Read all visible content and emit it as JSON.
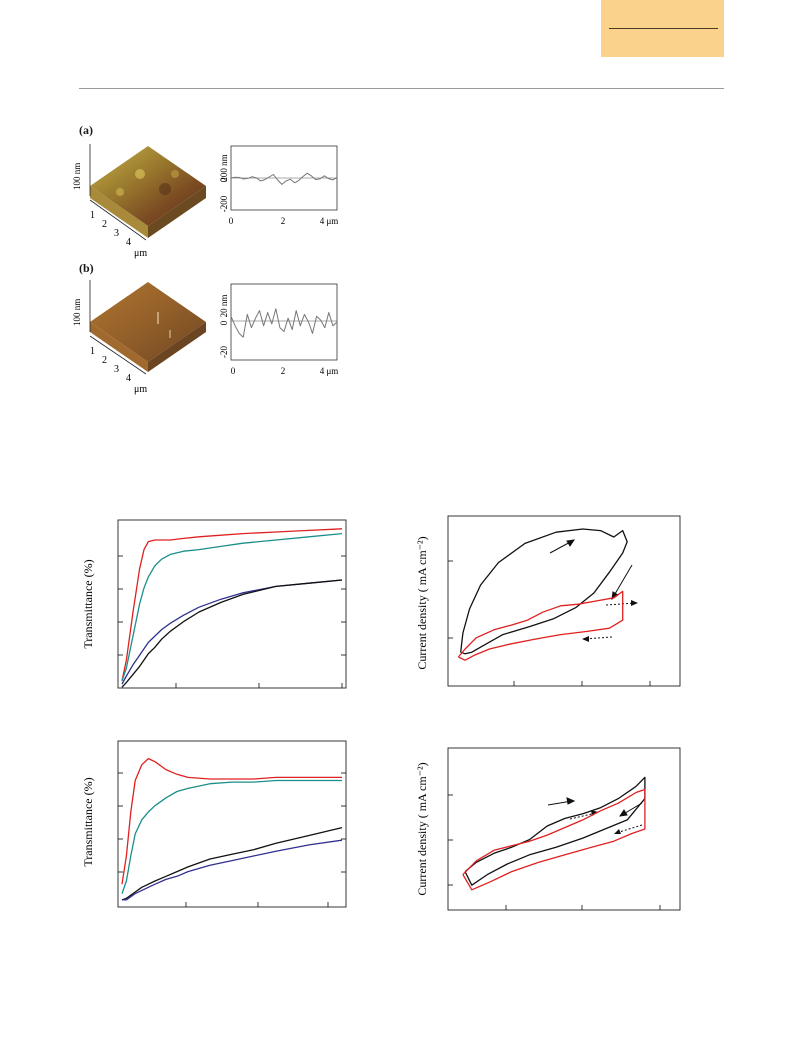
{
  "header": {
    "tab_color": "#fbd28c"
  },
  "afm": {
    "panels": [
      {
        "label": "(a)",
        "surface_height_label": "100 nm",
        "surface_axis_ticks": [
          "1",
          "2",
          "3",
          "4"
        ],
        "surface_axis_unit": "μm",
        "profile_y_ticks": [
          "200 nm",
          "0",
          "-200"
        ],
        "profile_x_ticks": [
          "0",
          "2",
          "4 μm"
        ],
        "profile_yrange": [
          -200,
          200
        ],
        "profile": [
          0,
          5,
          3,
          -6,
          -2,
          8,
          0,
          -18,
          -10,
          6,
          22,
          -12,
          -40,
          -18,
          -8,
          -30,
          -15,
          10,
          30,
          12,
          -10,
          -5,
          14,
          -4,
          -12,
          4
        ]
      },
      {
        "label": "(b)",
        "surface_height_label": "100 nm",
        "surface_axis_ticks": [
          "1",
          "2",
          "3",
          "4"
        ],
        "surface_axis_unit": "μm",
        "profile_y_ticks": [
          "20 nm",
          "0",
          "-20"
        ],
        "profile_x_ticks": [
          "0",
          "2",
          "4 μm"
        ],
        "profile_yrange": [
          -20,
          20
        ],
        "profile": [
          3,
          -2,
          -6,
          -8,
          4,
          -3,
          2,
          6,
          -2,
          5,
          -1,
          7,
          -3,
          -5,
          2,
          -4,
          6,
          -2,
          4,
          0,
          -6,
          3,
          1,
          -3,
          5,
          -2,
          0
        ]
      }
    ]
  },
  "chart_data": [
    {
      "type": "line",
      "ylabel": "Transmittance (%)",
      "xlim": [
        0,
        1
      ],
      "ylim": [
        0,
        1
      ],
      "x": [
        0,
        0.02,
        0.05,
        0.08,
        0.1,
        0.12,
        0.15,
        0.18,
        0.22,
        0.28,
        0.35,
        0.45,
        0.55,
        0.7,
        0.85,
        1.0
      ],
      "series": [
        {
          "color": "#e02020",
          "values": [
            0.02,
            0.15,
            0.45,
            0.72,
            0.84,
            0.89,
            0.9,
            0.9,
            0.9,
            0.91,
            0.92,
            0.93,
            0.94,
            0.95,
            0.96,
            0.97
          ]
        },
        {
          "color": "#1a8f8a",
          "values": [
            0.02,
            0.1,
            0.3,
            0.5,
            0.6,
            0.67,
            0.74,
            0.78,
            0.81,
            0.83,
            0.84,
            0.86,
            0.88,
            0.9,
            0.92,
            0.94
          ]
        },
        {
          "color": "#303090",
          "values": [
            0.0,
            0.05,
            0.12,
            0.18,
            0.22,
            0.26,
            0.3,
            0.34,
            0.38,
            0.43,
            0.48,
            0.53,
            0.57,
            0.61,
            0.63,
            0.65
          ]
        },
        {
          "color": "#111111",
          "values": [
            -0.02,
            0.01,
            0.06,
            0.11,
            0.15,
            0.19,
            0.23,
            0.28,
            0.33,
            0.39,
            0.45,
            0.51,
            0.56,
            0.61,
            0.63,
            0.65
          ]
        }
      ]
    },
    {
      "type": "line",
      "ylabel": "Current density ( mA cm⁻²)",
      "xlim": [
        0,
        1
      ],
      "ylim": [
        0,
        1
      ],
      "series": [
        {
          "color": "#111111",
          "x": [
            0.03,
            0.04,
            0.07,
            0.12,
            0.2,
            0.32,
            0.46,
            0.58,
            0.66,
            0.72,
            0.76,
            0.78,
            0.76,
            0.7,
            0.63,
            0.55,
            0.45,
            0.34,
            0.22,
            0.13,
            0.08,
            0.05,
            0.03
          ],
          "values": [
            0.18,
            0.3,
            0.45,
            0.6,
            0.74,
            0.86,
            0.93,
            0.95,
            0.94,
            0.9,
            0.94,
            0.87,
            0.8,
            0.68,
            0.55,
            0.46,
            0.39,
            0.34,
            0.29,
            0.22,
            0.18,
            0.17,
            0.18
          ]
        },
        {
          "color": "#e02020",
          "x": [
            0.02,
            0.05,
            0.1,
            0.18,
            0.26,
            0.33,
            0.4,
            0.48,
            0.56,
            0.64,
            0.72,
            0.76,
            0.76,
            0.7,
            0.6,
            0.48,
            0.36,
            0.25,
            0.16,
            0.09,
            0.05,
            0.02
          ],
          "values": [
            0.15,
            0.2,
            0.27,
            0.32,
            0.35,
            0.38,
            0.43,
            0.47,
            0.48,
            0.5,
            0.52,
            0.56,
            0.38,
            0.33,
            0.31,
            0.29,
            0.26,
            0.23,
            0.2,
            0.16,
            0.13,
            0.15
          ]
        }
      ]
    },
    {
      "type": "line",
      "ylabel": "Transmittance (%)",
      "xlim": [
        0,
        1
      ],
      "ylim": [
        0,
        1
      ],
      "x": [
        0,
        0.02,
        0.04,
        0.06,
        0.09,
        0.12,
        0.15,
        0.2,
        0.25,
        0.3,
        0.4,
        0.5,
        0.6,
        0.7,
        0.85,
        1.0
      ],
      "series": [
        {
          "color": "#e02020",
          "values": [
            0.12,
            0.3,
            0.58,
            0.78,
            0.88,
            0.92,
            0.9,
            0.85,
            0.82,
            0.8,
            0.79,
            0.79,
            0.79,
            0.8,
            0.8,
            0.8
          ]
        },
        {
          "color": "#1a8f8a",
          "values": [
            0.06,
            0.14,
            0.3,
            0.44,
            0.53,
            0.58,
            0.62,
            0.67,
            0.71,
            0.73,
            0.76,
            0.77,
            0.77,
            0.78,
            0.78,
            0.78
          ]
        },
        {
          "color": "#111111",
          "values": [
            0.02,
            0.03,
            0.05,
            0.07,
            0.1,
            0.12,
            0.14,
            0.17,
            0.2,
            0.23,
            0.28,
            0.31,
            0.34,
            0.38,
            0.43,
            0.48
          ]
        },
        {
          "color": "#303090",
          "values": [
            0.02,
            0.02,
            0.04,
            0.06,
            0.08,
            0.1,
            0.12,
            0.15,
            0.17,
            0.2,
            0.24,
            0.27,
            0.3,
            0.33,
            0.37,
            0.4
          ]
        }
      ]
    },
    {
      "type": "line",
      "ylabel": "Current density ( mA cm⁻²)",
      "xlim": [
        0,
        1
      ],
      "ylim": [
        0,
        1
      ],
      "series": [
        {
          "color": "#111111",
          "x": [
            0.05,
            0.1,
            0.18,
            0.26,
            0.34,
            0.42,
            0.5,
            0.58,
            0.66,
            0.74,
            0.82,
            0.86,
            0.86,
            0.78,
            0.68,
            0.58,
            0.46,
            0.34,
            0.24,
            0.15,
            0.08,
            0.05
          ],
          "values": [
            0.22,
            0.28,
            0.34,
            0.38,
            0.43,
            0.52,
            0.57,
            0.6,
            0.64,
            0.7,
            0.78,
            0.84,
            0.7,
            0.56,
            0.5,
            0.44,
            0.38,
            0.33,
            0.27,
            0.2,
            0.13,
            0.22
          ]
        },
        {
          "color": "#e02020",
          "x": [
            0.04,
            0.1,
            0.18,
            0.26,
            0.34,
            0.42,
            0.5,
            0.58,
            0.66,
            0.74,
            0.82,
            0.86,
            0.86,
            0.8,
            0.72,
            0.62,
            0.5,
            0.38,
            0.26,
            0.16,
            0.08,
            0.04
          ],
          "values": [
            0.2,
            0.29,
            0.36,
            0.39,
            0.42,
            0.46,
            0.51,
            0.56,
            0.62,
            0.67,
            0.74,
            0.76,
            0.5,
            0.47,
            0.42,
            0.38,
            0.33,
            0.28,
            0.22,
            0.15,
            0.1,
            0.2
          ]
        }
      ]
    }
  ]
}
